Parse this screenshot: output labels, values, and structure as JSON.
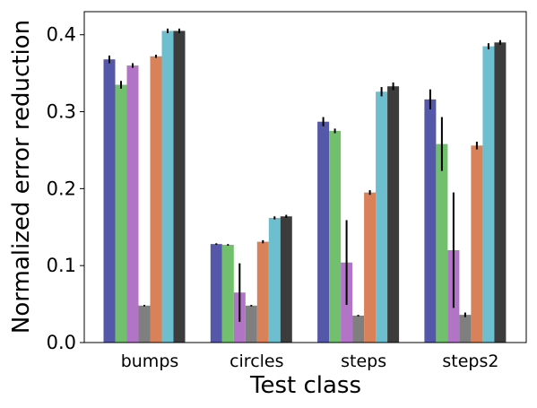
{
  "chart_data": {
    "type": "bar",
    "title": "",
    "xlabel": "Test class",
    "ylabel": "Normalized error reduction",
    "categories": [
      "bumps",
      "circles",
      "steps",
      "steps2"
    ],
    "ylim": [
      0,
      0.43
    ],
    "yticks": [
      0.0,
      0.1,
      0.2,
      0.3,
      0.4
    ],
    "ytick_labels": [
      "0.0",
      "0.1",
      "0.2",
      "0.3",
      "0.4"
    ],
    "grid": false,
    "legend": "none",
    "series": [
      {
        "color": "#5557a8",
        "values": [
          0.368,
          0.128,
          0.287,
          0.316
        ],
        "errors": [
          0.005,
          0.001,
          0.006,
          0.013
        ]
      },
      {
        "color": "#72bf6e",
        "values": [
          0.335,
          0.127,
          0.275,
          0.258
        ],
        "errors": [
          0.005,
          0.001,
          0.003,
          0.035
        ]
      },
      {
        "color": "#b274c7",
        "values": [
          0.36,
          0.065,
          0.104,
          0.12
        ],
        "errors": [
          0.003,
          0.038,
          0.055,
          0.075
        ]
      },
      {
        "color": "#7f7f7f",
        "values": [
          0.048,
          0.048,
          0.035,
          0.036
        ],
        "errors": [
          0.001,
          0.001,
          0.001,
          0.003
        ]
      },
      {
        "color": "#d9825a",
        "values": [
          0.372,
          0.131,
          0.195,
          0.256
        ],
        "errors": [
          0.002,
          0.002,
          0.003,
          0.005
        ]
      },
      {
        "color": "#6dbfcf",
        "values": [
          0.405,
          0.162,
          0.326,
          0.385
        ],
        "errors": [
          0.003,
          0.002,
          0.006,
          0.004
        ]
      },
      {
        "color": "#3c3c3c",
        "values": [
          0.405,
          0.164,
          0.333,
          0.39
        ],
        "errors": [
          0.003,
          0.002,
          0.005,
          0.003
        ]
      }
    ]
  }
}
